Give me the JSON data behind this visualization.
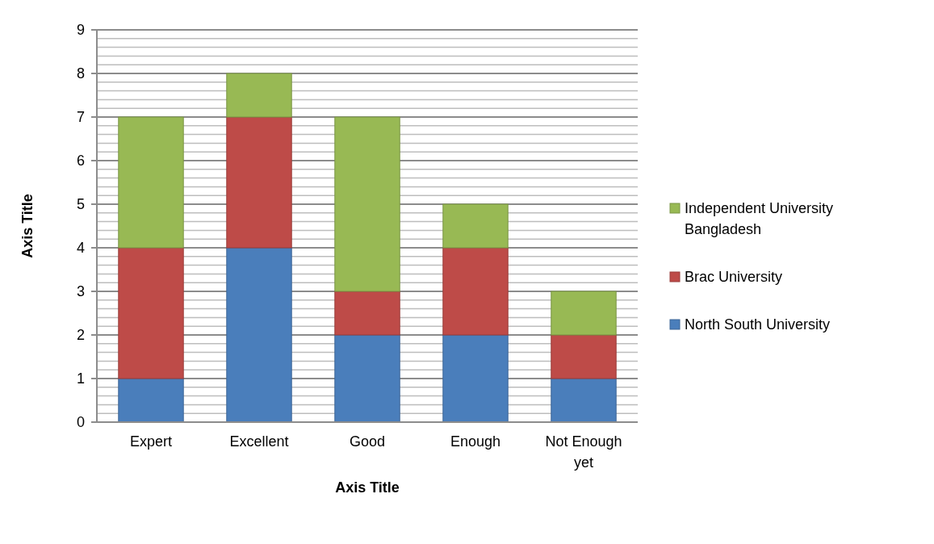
{
  "chart_data": {
    "type": "bar",
    "stacked": true,
    "xlabel": "Axis Title",
    "ylabel": "Axis Title",
    "categories": [
      "Expert",
      "Excellent",
      "Good",
      "Enough",
      "Not Enough yet"
    ],
    "series": [
      {
        "name": "North South University",
        "color": "#4a7ebb",
        "values": [
          1,
          4,
          2,
          2,
          1
        ]
      },
      {
        "name": "Brac University",
        "color": "#be4b48",
        "values": [
          3,
          3,
          1,
          2,
          1
        ]
      },
      {
        "name": "Independent University Bangladesh",
        "color": "#98b954",
        "values": [
          3,
          1,
          4,
          1,
          1
        ]
      }
    ],
    "ylim": [
      0,
      9
    ],
    "yticks": [
      0,
      {
        "value": 0.2,
        "label": null
      },
      {
        "value": 0.4,
        "label": null
      },
      {
        "value": 0.6,
        "label": null
      },
      {
        "value": 0.8,
        "label": null
      },
      1,
      {
        "value": 1.2,
        "label": null
      },
      {
        "value": 1.4,
        "label": null
      },
      {
        "value": 1.6,
        "label": null
      },
      {
        "value": 1.8,
        "label": null
      },
      2,
      {
        "value": 2.2,
        "label": null
      },
      {
        "value": 2.4,
        "label": null
      },
      {
        "value": 2.6,
        "label": null
      },
      {
        "value": 2.8,
        "label": null
      },
      3,
      {
        "value": 3.2,
        "label": null
      },
      {
        "value": 3.4,
        "label": null
      },
      {
        "value": 3.6,
        "label": null
      },
      {
        "value": 3.8,
        "label": null
      },
      4,
      {
        "value": 4.2,
        "label": null
      },
      {
        "value": 4.4,
        "label": null
      },
      {
        "value": 4.6,
        "label": null
      },
      {
        "value": 4.8,
        "label": null
      },
      5,
      {
        "value": 5.2,
        "label": null
      },
      {
        "value": 5.4,
        "label": null
      },
      {
        "value": 5.6,
        "label": null
      },
      {
        "value": 5.8,
        "label": null
      },
      6,
      {
        "value": 6.2,
        "label": null
      },
      {
        "value": 6.4,
        "label": null
      },
      {
        "value": 6.6,
        "label": null
      },
      {
        "value": 6.8,
        "label": null
      },
      7,
      {
        "value": 7.2,
        "label": null
      },
      {
        "value": 7.4,
        "label": null
      },
      {
        "value": 7.6,
        "label": null
      },
      {
        "value": 7.8,
        "label": null
      },
      8,
      {
        "value": 8.2,
        "label": null
      },
      {
        "value": 8.4,
        "label": null
      },
      {
        "value": 8.6,
        "label": null
      },
      {
        "value": 8.8,
        "label": null
      },
      9
    ],
    "grid": true,
    "legend": "right"
  }
}
